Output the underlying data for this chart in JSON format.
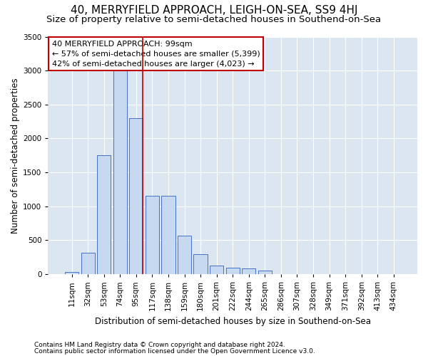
{
  "title": "40, MERRYFIELD APPROACH, LEIGH-ON-SEA, SS9 4HJ",
  "subtitle": "Size of property relative to semi-detached houses in Southend-on-Sea",
  "xlabel": "Distribution of semi-detached houses by size in Southend-on-Sea",
  "ylabel": "Number of semi-detached properties",
  "footnote1": "Contains HM Land Registry data © Crown copyright and database right 2024.",
  "footnote2": "Contains public sector information licensed under the Open Government Licence v3.0.",
  "categories": [
    "11sqm",
    "32sqm",
    "53sqm",
    "74sqm",
    "95sqm",
    "117sqm",
    "138sqm",
    "159sqm",
    "180sqm",
    "201sqm",
    "222sqm",
    "244sqm",
    "265sqm",
    "286sqm",
    "307sqm",
    "328sqm",
    "349sqm",
    "371sqm",
    "392sqm",
    "413sqm",
    "434sqm"
  ],
  "values": [
    30,
    310,
    1750,
    3050,
    2300,
    1150,
    1150,
    570,
    290,
    130,
    90,
    80,
    55,
    0,
    0,
    0,
    0,
    0,
    0,
    0,
    0
  ],
  "bar_color": "#c6d9f0",
  "bar_edge_color": "#4472c4",
  "highlight_index": 4,
  "highlight_line_color": "#c00000",
  "annotation_text": "40 MERRYFIELD APPROACH: 99sqm\n← 57% of semi-detached houses are smaller (5,399)\n42% of semi-detached houses are larger (4,023) →",
  "annotation_box_color": "#ffffff",
  "annotation_box_edge_color": "#c00000",
  "ylim": [
    0,
    3500
  ],
  "yticks": [
    0,
    500,
    1000,
    1500,
    2000,
    2500,
    3000,
    3500
  ],
  "plot_background_color": "#dce6f1",
  "title_fontsize": 11,
  "subtitle_fontsize": 9.5,
  "ylabel_fontsize": 8.5,
  "xlabel_fontsize": 8.5,
  "tick_fontsize": 7.5,
  "annotation_fontsize": 8,
  "footnote_fontsize": 6.5
}
